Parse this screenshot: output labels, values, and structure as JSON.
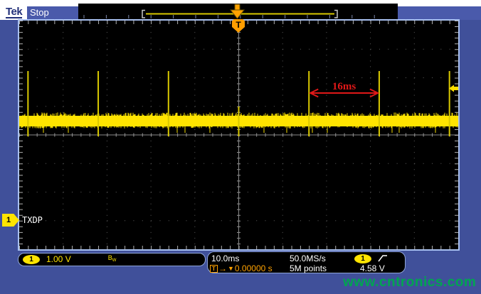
{
  "header": {
    "logo": "Tek",
    "acquisition_status": "Stop",
    "trigger_marker_letter": "T"
  },
  "waveform": {
    "label": "TXDP",
    "channel_number": "1",
    "spikes_ms": [
      -48,
      -32,
      -16,
      0,
      16,
      32,
      48
    ],
    "short_spike_ms": 0,
    "period_ms": 16
  },
  "annotation": {
    "text": "16ms",
    "from_ms": 16,
    "to_ms": 32
  },
  "channel_readout": {
    "channel": "1",
    "scale": "1.00 V",
    "bw_main": "B",
    "bw_sub": "W"
  },
  "horizontal_readout": {
    "time_per_div": "10.0ms",
    "sample_rate": "50.0MS/s",
    "record_length": "5M points",
    "trigger_t": "T",
    "trigger_arrow": "→",
    "trigger_caret": "▼",
    "trigger_position": "0.00000 s"
  },
  "trigger_readout": {
    "source": "1",
    "slope": "rising-edge",
    "level": "4.58 V"
  },
  "watermark": "www.cntronics.com",
  "icons": {
    "trigger_position_icon": "orange-down-arrow",
    "trigger_marker_icon": "orange-T-shield",
    "trigger_level_icon": "yellow-left-arrow",
    "channel_ground_icon": "yellow-right-tag",
    "slope_icon": "rising-edge"
  },
  "colors": {
    "channel1_yellow": "#ffe400",
    "trigger_orange": "#ff9d00",
    "annotation_red": "#e01818",
    "watermark_green": "#00a551",
    "panel_blue": "#40509a",
    "graticule_border": "#a8c0f0"
  }
}
